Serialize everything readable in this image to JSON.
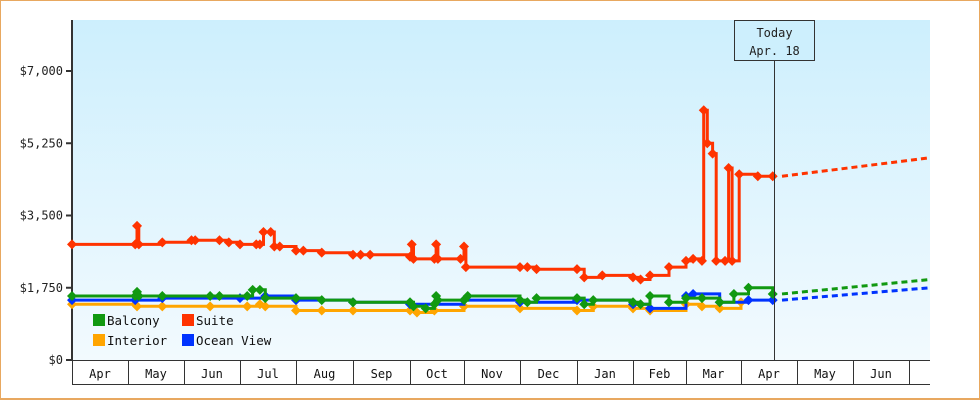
{
  "chart_data": {
    "type": "line",
    "title": "",
    "xlabel": "",
    "ylabel": "",
    "ylim": [
      0,
      8000
    ],
    "y_ticks": [
      {
        "label": "$0",
        "value": 0
      },
      {
        "label": "$1,750",
        "value": 1750
      },
      {
        "label": "$3,500",
        "value": 3500
      },
      {
        "label": "$5,250",
        "value": 5250
      },
      {
        "label": "$7,000",
        "value": 7000
      }
    ],
    "x_ticks": [
      "Apr",
      "May",
      "Jun",
      "Jul",
      "Aug",
      "Sep",
      "Oct",
      "Nov",
      "Dec",
      "Jan",
      "Feb",
      "Mar",
      "Apr",
      "May",
      "Jun"
    ],
    "today_marker": {
      "line1": "Today",
      "line2": "Apr. 18"
    },
    "legend": [
      {
        "name": "Balcony",
        "color": "#119911"
      },
      {
        "name": "Suite",
        "color": "#ff3300"
      },
      {
        "name": "Interior",
        "color": "#ffa500"
      },
      {
        "name": "Ocean View",
        "color": "#0033ff"
      }
    ],
    "legend_position": "lower-left inside plot",
    "grid": false,
    "series": [
      {
        "name": "Suite",
        "color": "#ff3300",
        "points": [
          [
            "Apr 1",
            2800
          ],
          [
            "May 5",
            2800
          ],
          [
            "May 6",
            3250
          ],
          [
            "May 7",
            2800
          ],
          [
            "May 20",
            2850
          ],
          [
            "Jun 5",
            2900
          ],
          [
            "Jun 7",
            2900
          ],
          [
            "Jun 20",
            2900
          ],
          [
            "Jun 25",
            2850
          ],
          [
            "Jul 1",
            2800
          ],
          [
            "Jul 10",
            2800
          ],
          [
            "Jul 12",
            2800
          ],
          [
            "Jul 14",
            3100
          ],
          [
            "Jul 18",
            3100
          ],
          [
            "Jul 20",
            2750
          ],
          [
            "Jul 23",
            2750
          ],
          [
            "Aug 1",
            2650
          ],
          [
            "Aug 5",
            2650
          ],
          [
            "Aug 15",
            2600
          ],
          [
            "Sep 1",
            2550
          ],
          [
            "Sep 5",
            2550
          ],
          [
            "Sep 10",
            2550
          ],
          [
            "Oct 1",
            2500
          ],
          [
            "Oct 2",
            2800
          ],
          [
            "Oct 3",
            2450
          ],
          [
            "Oct 15",
            2450
          ],
          [
            "Oct 16",
            2800
          ],
          [
            "Oct 17",
            2450
          ],
          [
            "Oct 30",
            2450
          ],
          [
            "Nov 1",
            2750
          ],
          [
            "Nov 2",
            2250
          ],
          [
            "Dec 1",
            2250
          ],
          [
            "Dec 5",
            2250
          ],
          [
            "Dec 10",
            2200
          ],
          [
            "Jan 1",
            2200
          ],
          [
            "Jan 5",
            2000
          ],
          [
            "Jan 15",
            2050
          ],
          [
            "Feb 1",
            2000
          ],
          [
            "Feb 5",
            1950
          ],
          [
            "Feb 10",
            2050
          ],
          [
            "Feb 20",
            2250
          ],
          [
            "Mar 1",
            2400
          ],
          [
            "Mar 5",
            2450
          ],
          [
            "Mar 10",
            2400
          ],
          [
            "Mar 11",
            6050
          ],
          [
            "Mar 13",
            5250
          ],
          [
            "Mar 16",
            5000
          ],
          [
            "Mar 18",
            2400
          ],
          [
            "Mar 23",
            2400
          ],
          [
            "Mar 25",
            4650
          ],
          [
            "Mar 27",
            2400
          ],
          [
            "Mar 31",
            4500
          ],
          [
            "Apr 10",
            4450
          ],
          [
            "Apr 18",
            4450
          ]
        ],
        "forecast": [
          [
            "Apr 18",
            4450
          ],
          [
            "Jul 1",
            4900
          ]
        ]
      },
      {
        "name": "Balcony",
        "color": "#119911",
        "points": [
          [
            "Apr 1",
            1550
          ],
          [
            "May 5",
            1550
          ],
          [
            "May 6",
            1650
          ],
          [
            "May 7",
            1550
          ],
          [
            "May 20",
            1550
          ],
          [
            "Jun 15",
            1550
          ],
          [
            "Jun 20",
            1550
          ],
          [
            "Jul 5",
            1550
          ],
          [
            "Jul 8",
            1700
          ],
          [
            "Jul 12",
            1700
          ],
          [
            "Jul 15",
            1500
          ],
          [
            "Aug 1",
            1500
          ],
          [
            "Aug 15",
            1450
          ],
          [
            "Sep 1",
            1400
          ],
          [
            "Oct 1",
            1400
          ],
          [
            "Oct 3",
            1300
          ],
          [
            "Oct 10",
            1250
          ],
          [
            "Oct 15",
            1350
          ],
          [
            "Oct 16",
            1550
          ],
          [
            "Oct 17",
            1450
          ],
          [
            "Nov 1",
            1450
          ],
          [
            "Nov 3",
            1550
          ],
          [
            "Dec 1",
            1450
          ],
          [
            "Dec 5",
            1400
          ],
          [
            "Dec 10",
            1500
          ],
          [
            "Jan 1",
            1500
          ],
          [
            "Jan 5",
            1350
          ],
          [
            "Jan 10",
            1450
          ],
          [
            "Feb 1",
            1400
          ],
          [
            "Feb 5",
            1350
          ],
          [
            "Feb 10",
            1550
          ],
          [
            "Feb 20",
            1400
          ],
          [
            "Mar 1",
            1500
          ],
          [
            "Mar 10",
            1500
          ],
          [
            "Mar 20",
            1400
          ],
          [
            "Mar 28",
            1600
          ],
          [
            "Apr 5",
            1750
          ],
          [
            "Apr 18",
            1600
          ]
        ],
        "forecast": [
          [
            "Apr 18",
            1600
          ],
          [
            "Jul 1",
            1950
          ]
        ]
      },
      {
        "name": "Ocean View",
        "color": "#0033ff",
        "points": [
          [
            "Apr 1",
            1450
          ],
          [
            "May 5",
            1450
          ],
          [
            "May 20",
            1500
          ],
          [
            "Jul 1",
            1500
          ],
          [
            "Jul 15",
            1550
          ],
          [
            "Aug 1",
            1450
          ],
          [
            "Sep 1",
            1400
          ],
          [
            "Oct 1",
            1350
          ],
          [
            "Nov 1",
            1450
          ],
          [
            "Dec 1",
            1400
          ],
          [
            "Jan 1",
            1450
          ],
          [
            "Feb 1",
            1350
          ],
          [
            "Feb 10",
            1250
          ],
          [
            "Mar 1",
            1550
          ],
          [
            "Mar 5",
            1600
          ],
          [
            "Mar 20",
            1400
          ],
          [
            "Apr 5",
            1450
          ],
          [
            "Apr 18",
            1450
          ]
        ],
        "forecast": [
          [
            "Apr 18",
            1450
          ],
          [
            "Jul 1",
            1750
          ]
        ]
      },
      {
        "name": "Interior",
        "color": "#ffa500",
        "points": [
          [
            "Apr 1",
            1350
          ],
          [
            "May 5",
            1350
          ],
          [
            "May 6",
            1300
          ],
          [
            "May 20",
            1300
          ],
          [
            "Jun 15",
            1300
          ],
          [
            "Jul 5",
            1300
          ],
          [
            "Jul 12",
            1350
          ],
          [
            "Jul 15",
            1300
          ],
          [
            "Aug 1",
            1200
          ],
          [
            "Aug 15",
            1200
          ],
          [
            "Sep 1",
            1200
          ],
          [
            "Oct 1",
            1200
          ],
          [
            "Oct 5",
            1150
          ],
          [
            "Oct 15",
            1200
          ],
          [
            "Nov 1",
            1300
          ],
          [
            "Dec 1",
            1250
          ],
          [
            "Jan 1",
            1200
          ],
          [
            "Jan 10",
            1300
          ],
          [
            "Feb 1",
            1250
          ],
          [
            "Feb 10",
            1200
          ],
          [
            "Mar 1",
            1350
          ],
          [
            "Mar 10",
            1300
          ],
          [
            "Mar 20",
            1250
          ],
          [
            "Apr 1",
            1400
          ]
        ],
        "forecast": []
      }
    ]
  }
}
